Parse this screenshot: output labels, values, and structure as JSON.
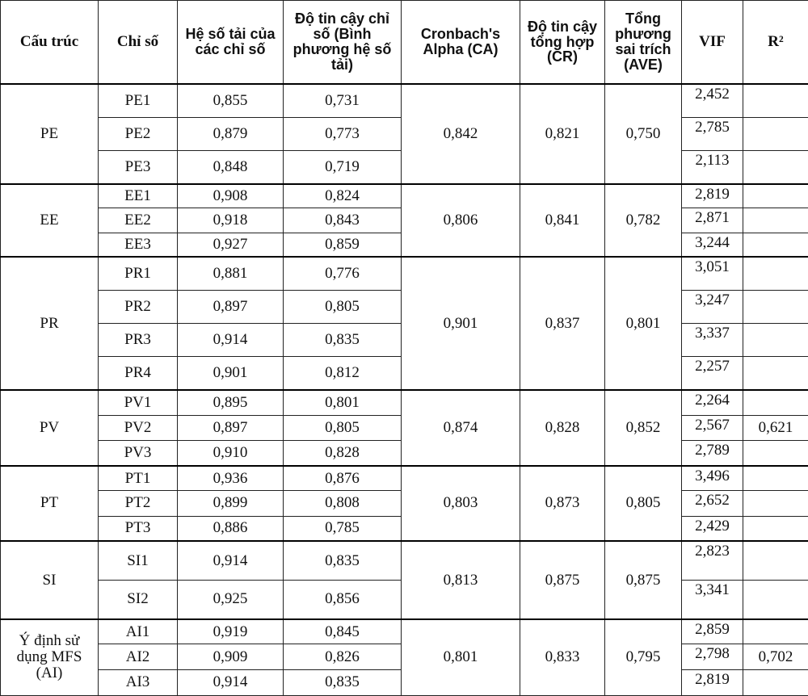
{
  "headers": {
    "structure": "Cấu trúc",
    "indicator": "Chỉ số",
    "loading": "Hệ số tải của các chỉ số",
    "indicator_reliability": "Độ tin cậy chỉ số (Bình phương hệ số tải)",
    "ca": "Cronbach's Alpha (CA)",
    "cr": "Độ tin cậy tổng hợp (CR)",
    "ave": "Tổng phương sai trích (AVE)",
    "vif": "VIF",
    "r2": "R²"
  },
  "groups": [
    {
      "name": "PE",
      "ca": "0,842",
      "cr": "0,821",
      "ave": "0,750",
      "rows": [
        {
          "ind": "PE1",
          "load": "0,855",
          "rel": "0,731",
          "vif": "2,452",
          "r2": ""
        },
        {
          "ind": "PE2",
          "load": "0,879",
          "rel": "0,773",
          "vif": "2,785",
          "r2": ""
        },
        {
          "ind": "PE3",
          "load": "0,848",
          "rel": "0,719",
          "vif": "2,113",
          "r2": ""
        }
      ]
    },
    {
      "name": "EE",
      "ca": "0,806",
      "cr": "0,841",
      "ave": "0,782",
      "rows": [
        {
          "ind": "EE1",
          "load": "0,908",
          "rel": "0,824",
          "vif": "2,819",
          "r2": ""
        },
        {
          "ind": "EE2",
          "load": "0,918",
          "rel": "0,843",
          "vif": "2,871",
          "r2": ""
        },
        {
          "ind": "EE3",
          "load": "0,927",
          "rel": "0,859",
          "vif": "3,244",
          "r2": ""
        }
      ]
    },
    {
      "name": "PR",
      "ca": "0,901",
      "cr": "0,837",
      "ave": "0,801",
      "rows": [
        {
          "ind": "PR1",
          "load": "0,881",
          "rel": "0,776",
          "vif": "3,051",
          "r2": ""
        },
        {
          "ind": "PR2",
          "load": "0,897",
          "rel": "0,805",
          "vif": "3,247",
          "r2": ""
        },
        {
          "ind": "PR3",
          "load": "0,914",
          "rel": "0,835",
          "vif": "3,337",
          "r2": ""
        },
        {
          "ind": "PR4",
          "load": "0,901",
          "rel": "0,812",
          "vif": "2,257",
          "r2": ""
        }
      ]
    },
    {
      "name": "PV",
      "ca": "0,874",
      "cr": "0,828",
      "ave": "0,852",
      "rows": [
        {
          "ind": "PV1",
          "load": "0,895",
          "rel": "0,801",
          "vif": "2,264",
          "r2": ""
        },
        {
          "ind": "PV2",
          "load": "0,897",
          "rel": "0,805",
          "vif": "2,567",
          "r2": "0,621"
        },
        {
          "ind": "PV3",
          "load": "0,910",
          "rel": "0,828",
          "vif": "2,789",
          "r2": ""
        }
      ]
    },
    {
      "name": "PT",
      "ca": "0,803",
      "cr": "0,873",
      "ave": "0,805",
      "rows": [
        {
          "ind": "PT1",
          "load": "0,936",
          "rel": "0,876",
          "vif": "3,496",
          "r2": ""
        },
        {
          "ind": "PT2",
          "load": "0,899",
          "rel": "0,808",
          "vif": "2,652",
          "r2": ""
        },
        {
          "ind": "PT3",
          "load": "0,886",
          "rel": "0,785",
          "vif": "2,429",
          "r2": ""
        }
      ]
    },
    {
      "name": "SI",
      "ca": "0,813",
      "cr": "0,875",
      "ave": "0,875",
      "rows": [
        {
          "ind": "SI1",
          "load": "0,914",
          "rel": "0,835",
          "vif": "2,823",
          "r2": ""
        },
        {
          "ind": "SI2",
          "load": "0,925",
          "rel": "0,856",
          "vif": "3,341",
          "r2": ""
        }
      ]
    },
    {
      "name": "Ý định sử dụng MFS (AI)",
      "ca": "0,801",
      "cr": "0,833",
      "ave": "0,795",
      "rows": [
        {
          "ind": "AI1",
          "load": "0,919",
          "rel": "0,845",
          "vif": "2,859",
          "r2": ""
        },
        {
          "ind": "AI2",
          "load": "0,909",
          "rel": "0,826",
          "vif": "2,798",
          "r2": "0,702"
        },
        {
          "ind": "AI3",
          "load": "0,914",
          "rel": "0,835",
          "vif": "2,819",
          "r2": ""
        }
      ]
    }
  ]
}
